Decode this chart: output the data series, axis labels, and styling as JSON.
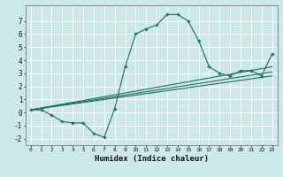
{
  "title": "",
  "xlabel": "Humidex (Indice chaleur)",
  "ylabel": "",
  "bg_color": "#cce8e8",
  "grid_color": "#ffffff",
  "line_color": "#1a6b5a",
  "xlim": [
    -0.5,
    23.5
  ],
  "ylim": [
    -2.5,
    8.2
  ],
  "xticks": [
    0,
    1,
    2,
    3,
    4,
    5,
    6,
    7,
    8,
    9,
    10,
    11,
    12,
    13,
    14,
    15,
    16,
    17,
    18,
    19,
    20,
    21,
    22,
    23
  ],
  "yticks": [
    -2,
    -1,
    0,
    1,
    2,
    3,
    4,
    5,
    6,
    7
  ],
  "series": [
    [
      0,
      0.2
    ],
    [
      1,
      0.2
    ],
    [
      2,
      -0.2
    ],
    [
      3,
      -0.7
    ],
    [
      4,
      -0.8
    ],
    [
      5,
      -0.8
    ],
    [
      6,
      -1.6
    ],
    [
      7,
      -1.9
    ],
    [
      8,
      0.3
    ],
    [
      9,
      3.5
    ],
    [
      10,
      6.0
    ],
    [
      11,
      6.4
    ],
    [
      12,
      6.7
    ],
    [
      13,
      7.5
    ],
    [
      14,
      7.5
    ],
    [
      15,
      7.0
    ],
    [
      16,
      5.5
    ],
    [
      17,
      3.5
    ],
    [
      18,
      3.0
    ],
    [
      19,
      2.8
    ],
    [
      20,
      3.2
    ],
    [
      21,
      3.2
    ],
    [
      22,
      2.8
    ],
    [
      23,
      4.5
    ]
  ],
  "linear_lines": [
    {
      "x": [
        0,
        23
      ],
      "y": [
        0.2,
        3.5
      ]
    },
    {
      "x": [
        0,
        23
      ],
      "y": [
        0.2,
        2.8
      ]
    },
    {
      "x": [
        0,
        23
      ],
      "y": [
        0.2,
        3.1
      ]
    }
  ]
}
